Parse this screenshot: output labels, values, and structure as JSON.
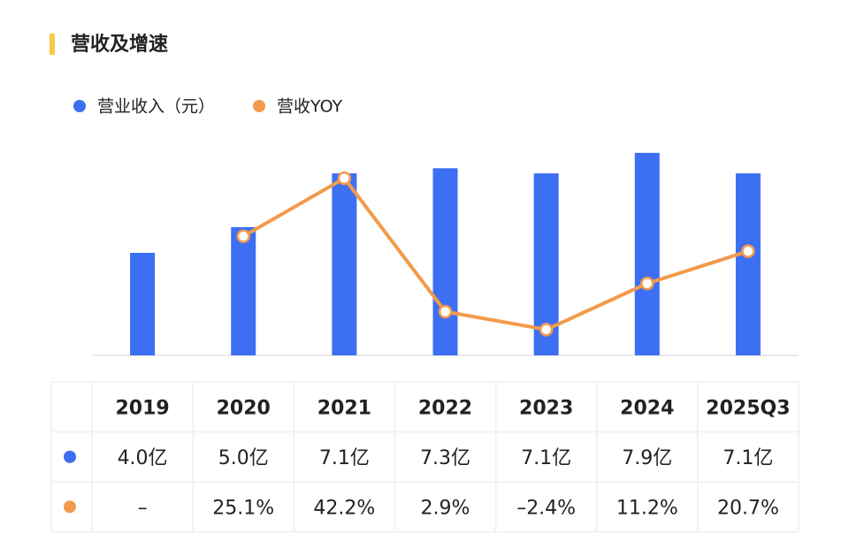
{
  "chart_data": {
    "type": "bar_line",
    "title": "营收及增速",
    "categories": [
      "2019",
      "2020",
      "2021",
      "2022",
      "2023",
      "2024",
      "2025Q3"
    ],
    "series": [
      {
        "name": "营业收入（元）",
        "type": "bar",
        "color": "#3d6ff2",
        "values": [
          4.0,
          5.0,
          7.1,
          7.3,
          7.1,
          7.9,
          7.1
        ],
        "value_labels": [
          "4.0亿",
          "5.0亿",
          "7.1亿",
          "7.3亿",
          "7.1亿",
          "7.9亿",
          "7.1亿"
        ]
      },
      {
        "name": "营收YOY",
        "type": "line",
        "axis": "y2",
        "color": "#f39a4c",
        "values": [
          null,
          25.1,
          42.2,
          2.9,
          -2.4,
          11.2,
          20.7
        ],
        "value_labels": [
          "–",
          "25.1%",
          "42.2%",
          "2.9%",
          "–2.4%",
          "11.2%",
          "20.7%"
        ]
      }
    ],
    "ylim": [
      0,
      9
    ],
    "y2lim": [
      -10,
      58
    ]
  }
}
